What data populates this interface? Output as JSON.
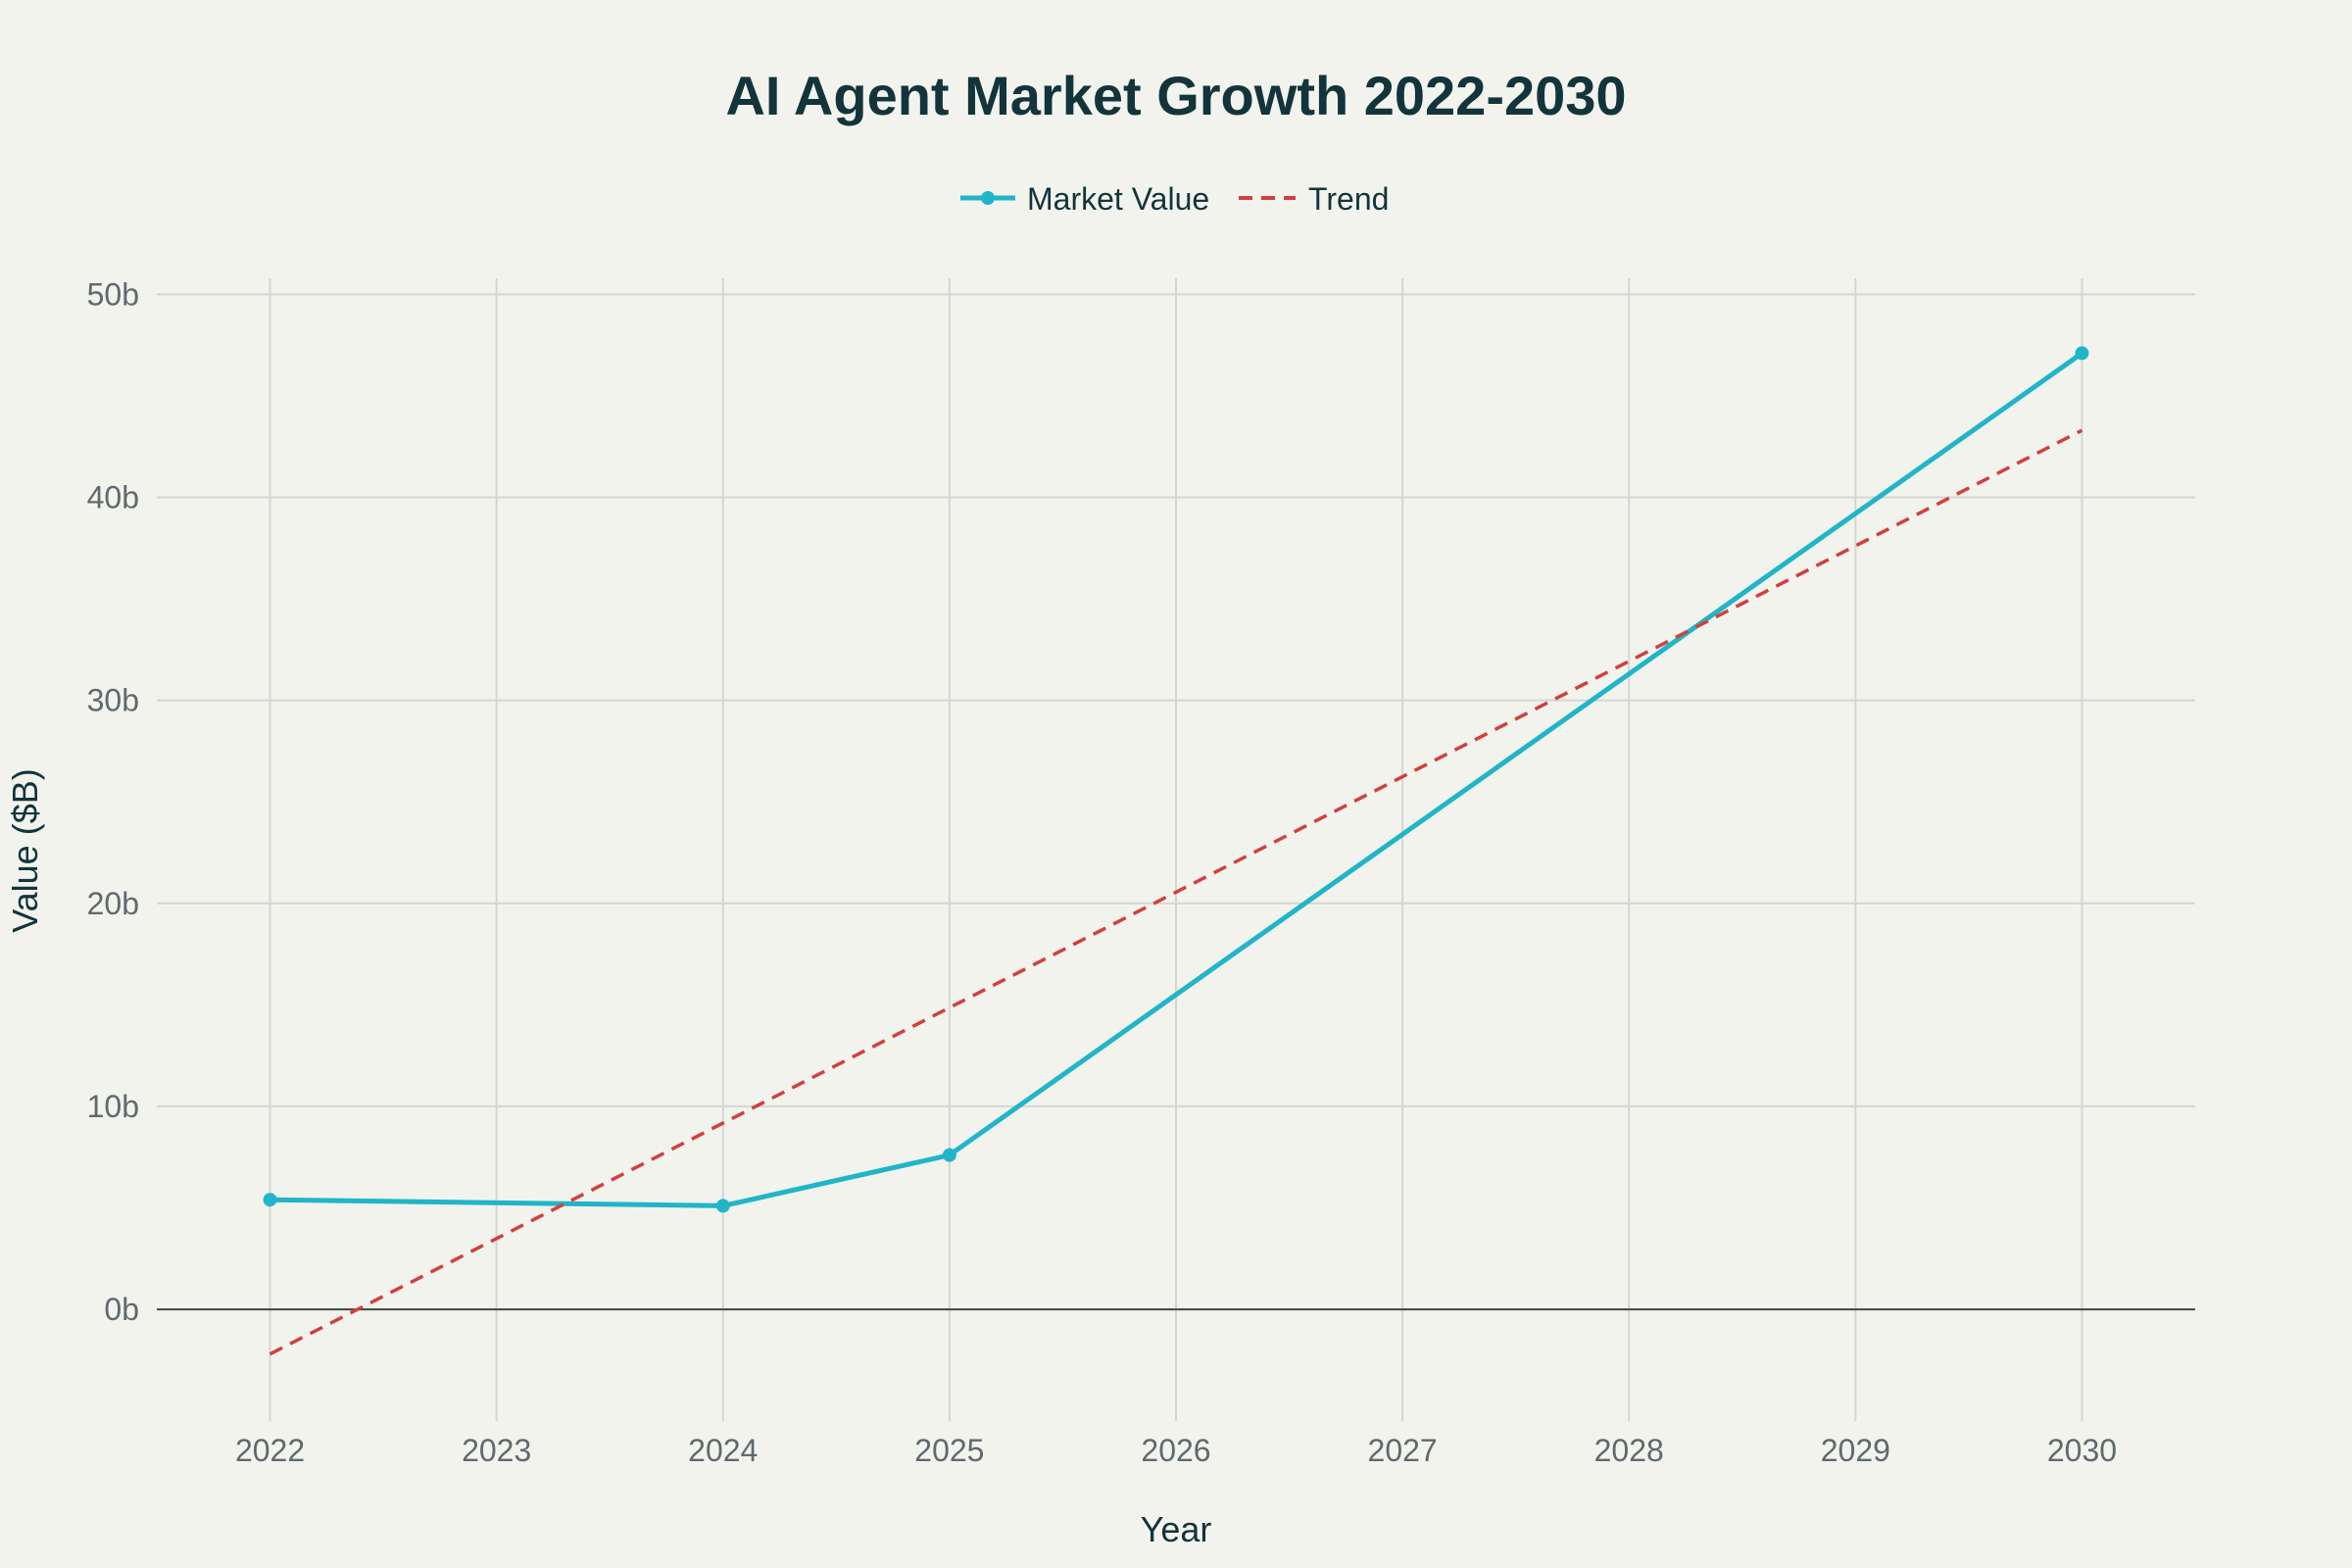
{
  "chart_data": {
    "type": "line",
    "title": "AI Agent Market Growth 2022-2030",
    "xlabel": "Year",
    "ylabel": "Value ($B)",
    "x_ticks": [
      "2022",
      "2023",
      "2024",
      "2025",
      "2026",
      "2027",
      "2028",
      "2029",
      "2030"
    ],
    "xlim": [
      2021.5,
      2030.5
    ],
    "y_ticks": [
      {
        "value": 0,
        "label": "0b"
      },
      {
        "value": 10,
        "label": "10b"
      },
      {
        "value": 20,
        "label": "20b"
      },
      {
        "value": 30,
        "label": "30b"
      },
      {
        "value": 40,
        "label": "40b"
      },
      {
        "value": 50,
        "label": "50b"
      }
    ],
    "ylim": [
      -5.5,
      50.5
    ],
    "grid": true,
    "legend_position": "top-center",
    "series": [
      {
        "name": "Market Value",
        "style": "solid-markers",
        "color": "#21b5c8",
        "x": [
          2022,
          2024,
          2025,
          2030
        ],
        "values": [
          5.4,
          5.1,
          7.6,
          47.1
        ]
      },
      {
        "name": "Trend",
        "style": "dashed",
        "color": "#d1403f",
        "x": [
          2022,
          2030
        ],
        "values": [
          -2.2,
          43.3
        ]
      }
    ]
  }
}
